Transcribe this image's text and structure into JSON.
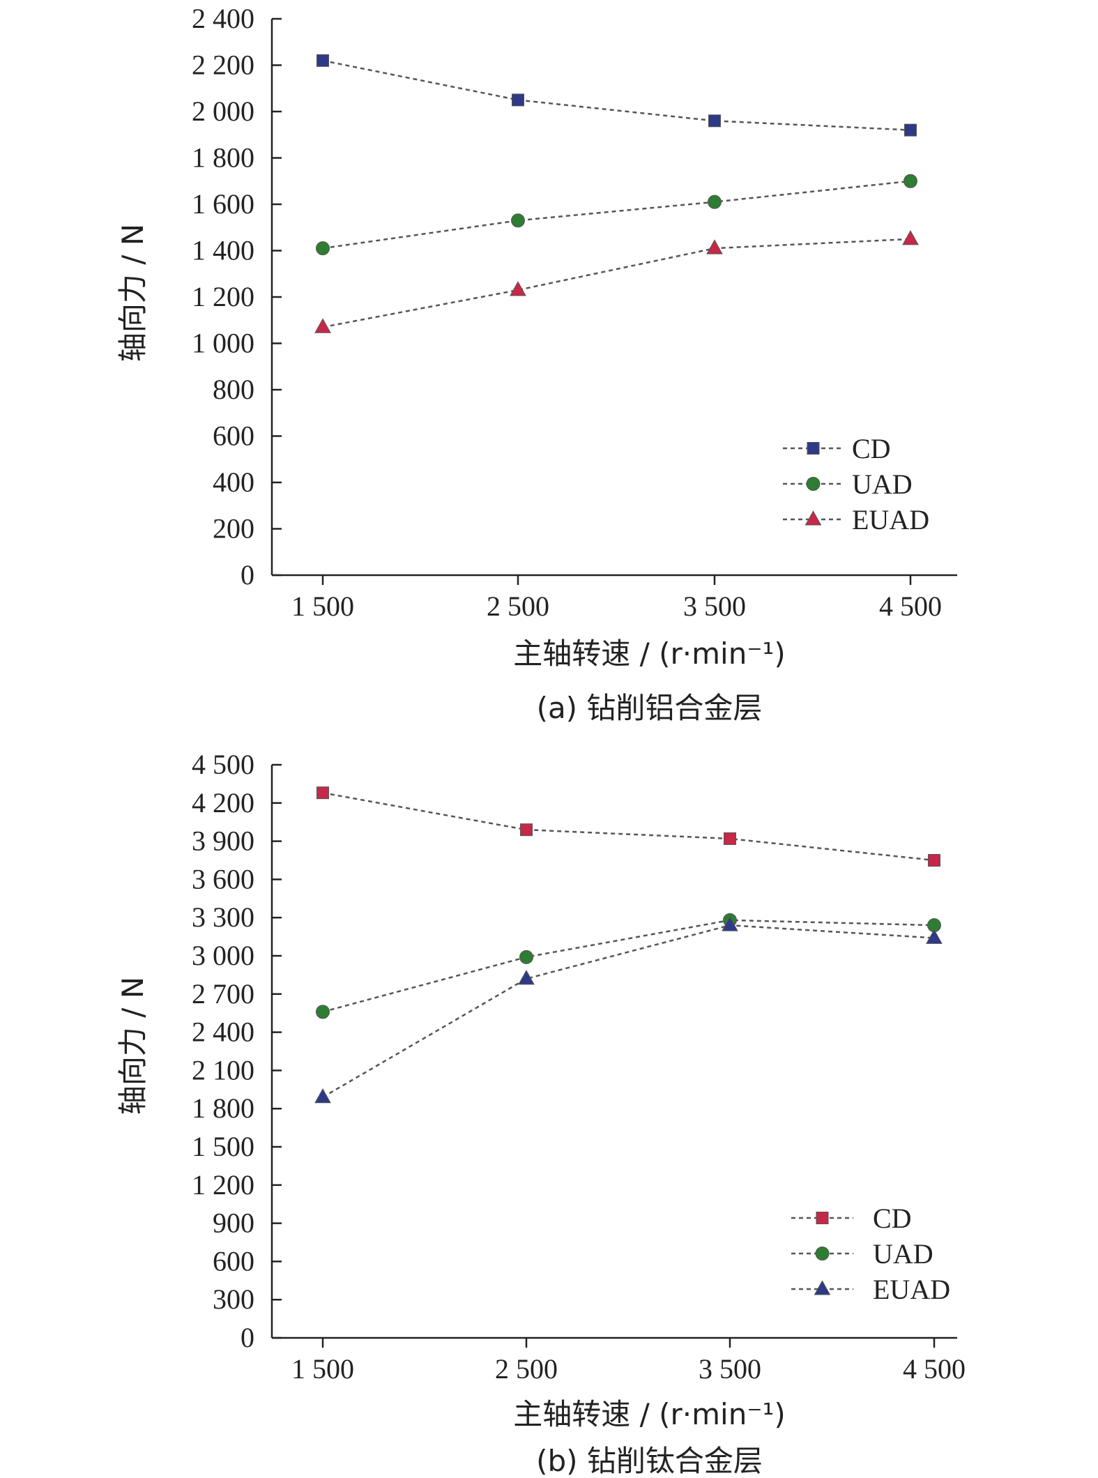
{
  "chart_data": [
    {
      "type": "line",
      "caption": "(a) 钻削铝合金层",
      "xlabel": "主轴转速 / (r·min⁻¹)",
      "ylabel": "轴向力 / N",
      "categories": [
        "1 500",
        "2 500",
        "3 500",
        "4 500"
      ],
      "x": [
        1500,
        2500,
        3500,
        4500
      ],
      "ylim": [
        0,
        2400
      ],
      "yticks": [
        0,
        200,
        400,
        600,
        800,
        1000,
        1200,
        1400,
        1600,
        1800,
        2000,
        2200,
        2400
      ],
      "ytick_labels": [
        "0",
        "200",
        "400",
        "600",
        "800",
        "1 000",
        "1 200",
        "1 400",
        "1 600",
        "1 800",
        "2 000",
        "2 200",
        "2 400"
      ],
      "legend_position": "bottom-right",
      "series": [
        {
          "name": "CD",
          "marker": "square",
          "color": "#2e3a87",
          "values": [
            2220,
            2050,
            1960,
            1920
          ]
        },
        {
          "name": "UAD",
          "marker": "circle",
          "color": "#2e7d32",
          "values": [
            1410,
            1530,
            1610,
            1700
          ]
        },
        {
          "name": "EUAD",
          "marker": "triangle",
          "color": "#c62847",
          "values": [
            1070,
            1230,
            1410,
            1450
          ]
        }
      ]
    },
    {
      "type": "line",
      "caption": "(b) 钻削钛合金层",
      "xlabel": "主轴转速 / (r·min⁻¹)",
      "ylabel": "轴向力 / N",
      "categories": [
        "1 500",
        "2 500",
        "3 500",
        "4 500"
      ],
      "x": [
        1500,
        2500,
        3500,
        4500
      ],
      "ylim": [
        0,
        4500
      ],
      "yticks": [
        0,
        300,
        600,
        900,
        1200,
        1500,
        1800,
        2100,
        2400,
        2700,
        3000,
        3300,
        3600,
        3900,
        4200,
        4500
      ],
      "ytick_labels": [
        "0",
        "300",
        "600",
        "900",
        "1 200",
        "1 500",
        "1 800",
        "2 100",
        "2 400",
        "2 700",
        "3 000",
        "3 300",
        "3 600",
        "3 900",
        "4 200",
        "4 500"
      ],
      "legend_position": "bottom-right",
      "series": [
        {
          "name": "CD",
          "marker": "square",
          "color": "#c62847",
          "values": [
            4280,
            3990,
            3920,
            3750
          ]
        },
        {
          "name": "UAD",
          "marker": "circle",
          "color": "#2e7d32",
          "values": [
            2560,
            2990,
            3280,
            3240
          ]
        },
        {
          "name": "EUAD",
          "marker": "triangle",
          "color": "#2e3a87",
          "values": [
            1890,
            2820,
            3240,
            3140
          ]
        }
      ]
    }
  ]
}
